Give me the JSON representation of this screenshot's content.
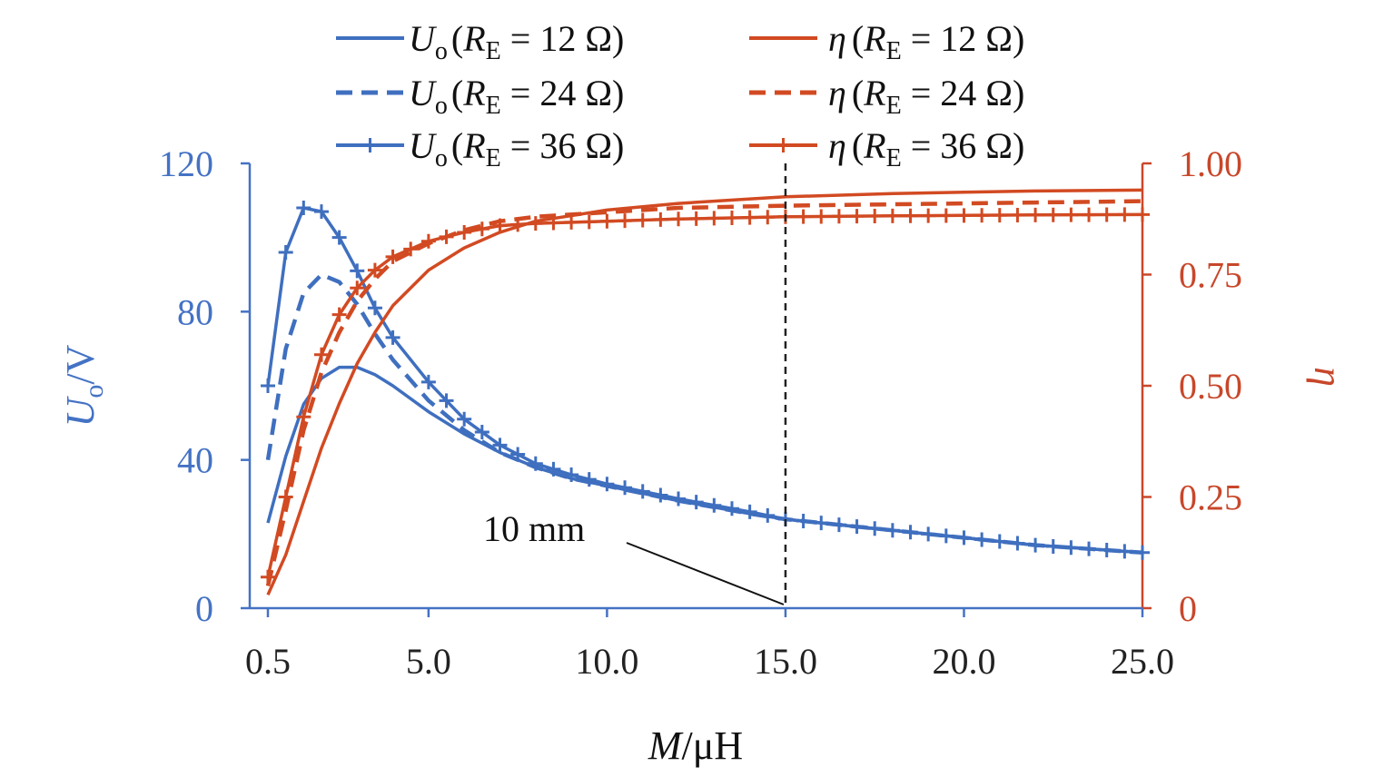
{
  "colors": {
    "left_axis": "#4472c4",
    "right_axis": "#c8472a",
    "series_uo": "#3f6fbf",
    "series_eta": "#d24a22",
    "text": "#111111"
  },
  "chart_data": {
    "type": "line",
    "xlabel": "M/μH",
    "ylabel_left": "Uo/V",
    "ylabel_right": "η",
    "xlim": [
      0.5,
      25.0
    ],
    "ylim_left": [
      0,
      120
    ],
    "ylim_right": [
      0,
      1.0
    ],
    "x_ticks": [
      "0.5",
      "5.0",
      "10.0",
      "15.0",
      "20.0",
      "25.0"
    ],
    "x_tick_values": [
      0.5,
      5,
      10,
      15,
      20,
      25
    ],
    "y_left_ticks": [
      "0",
      "40",
      "80",
      "120"
    ],
    "y_left_tick_values": [
      0,
      40,
      80,
      120
    ],
    "y_right_ticks": [
      "0",
      "0.25",
      "0.50",
      "0.75",
      "1.00"
    ],
    "y_right_tick_values": [
      0,
      0.25,
      0.5,
      0.75,
      1.0
    ],
    "grid": false,
    "legend_position": "top",
    "annotation": {
      "text": "10 mm",
      "x": 15.0
    },
    "series": [
      {
        "name": "Uo (RE = 12 Ω)",
        "axis": "left",
        "dash": "solid",
        "marker": "none",
        "x": [
          0.5,
          1.0,
          1.5,
          2.0,
          2.5,
          3.0,
          3.5,
          4.0,
          5.0,
          6.0,
          7.0,
          8.0,
          9.0,
          10.0,
          12.0,
          14.0,
          15.0,
          17.0,
          20.0,
          22.0,
          25.0
        ],
        "y": [
          23,
          41,
          55,
          62,
          65,
          65,
          63,
          60,
          53,
          47,
          42,
          38,
          35,
          33,
          29,
          25.5,
          24,
          22,
          19,
          17,
          15
        ]
      },
      {
        "name": "Uo (RE = 24 Ω)",
        "axis": "left",
        "dash": "dashed",
        "marker": "none",
        "x": [
          0.5,
          1.0,
          1.5,
          2.0,
          2.5,
          3.0,
          3.5,
          4.0,
          5.0,
          6.0,
          7.0,
          8.0,
          9.0,
          10.0,
          12.0,
          14.0,
          15.0,
          17.0,
          20.0,
          22.0,
          25.0
        ],
        "y": [
          40,
          70,
          85,
          90,
          88,
          82,
          74,
          67,
          56,
          48,
          42,
          38,
          35,
          33,
          29,
          25.5,
          24,
          22,
          19,
          17,
          15
        ]
      },
      {
        "name": "Uo (RE = 36 Ω)",
        "axis": "left",
        "dash": "solid",
        "marker": "plus",
        "x": [
          0.5,
          1.0,
          1.5,
          2.0,
          2.5,
          3.0,
          3.5,
          4.0,
          5.0,
          6.0,
          7.0,
          8.0,
          9.0,
          10.0,
          12.0,
          14.0,
          15.0,
          17.0,
          20.0,
          22.0,
          25.0
        ],
        "y": [
          60,
          96,
          108,
          107,
          100,
          91,
          81,
          73,
          61,
          51,
          44,
          39,
          36,
          33.5,
          29.5,
          26,
          24,
          22,
          19,
          17,
          15
        ]
      },
      {
        "name": "η (RE = 12 Ω)",
        "axis": "right",
        "dash": "solid",
        "marker": "none",
        "x": [
          0.5,
          1.0,
          1.5,
          2.0,
          2.5,
          3.0,
          3.5,
          4.0,
          5.0,
          6.0,
          7.0,
          8.0,
          10.0,
          12.0,
          15.0,
          18.0,
          20.0,
          22.0,
          25.0
        ],
        "y": [
          0.03,
          0.12,
          0.24,
          0.36,
          0.46,
          0.55,
          0.62,
          0.68,
          0.76,
          0.81,
          0.845,
          0.87,
          0.895,
          0.91,
          0.925,
          0.932,
          0.935,
          0.938,
          0.94
        ]
      },
      {
        "name": "η (RE = 24 Ω)",
        "axis": "right",
        "dash": "dashed",
        "marker": "none",
        "x": [
          0.5,
          1.0,
          1.5,
          2.0,
          2.5,
          3.0,
          3.5,
          4.0,
          5.0,
          6.0,
          7.0,
          8.0,
          10.0,
          12.0,
          15.0,
          18.0,
          20.0,
          22.0,
          25.0
        ],
        "y": [
          0.05,
          0.22,
          0.4,
          0.53,
          0.62,
          0.69,
          0.74,
          0.78,
          0.82,
          0.85,
          0.87,
          0.88,
          0.89,
          0.9,
          0.905,
          0.908,
          0.91,
          0.912,
          0.915
        ]
      },
      {
        "name": "η (RE = 36 Ω)",
        "axis": "right",
        "dash": "solid",
        "marker": "plus",
        "x": [
          0.5,
          1.0,
          1.5,
          2.0,
          2.5,
          3.0,
          3.5,
          4.0,
          5.0,
          6.0,
          7.0,
          8.0,
          10.0,
          12.0,
          15.0,
          18.0,
          20.0,
          22.0,
          25.0
        ],
        "y": [
          0.07,
          0.25,
          0.43,
          0.57,
          0.66,
          0.72,
          0.76,
          0.79,
          0.825,
          0.845,
          0.86,
          0.865,
          0.87,
          0.875,
          0.88,
          0.882,
          0.883,
          0.884,
          0.885
        ]
      }
    ]
  }
}
